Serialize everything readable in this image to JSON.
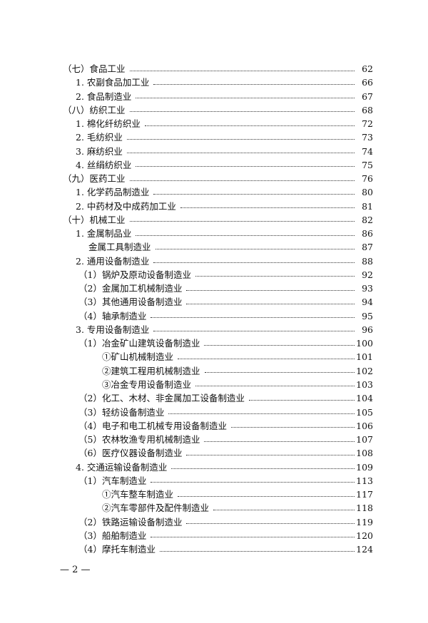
{
  "toc": [
    {
      "level": 0,
      "label": "（七）食品工业",
      "page": "62"
    },
    {
      "level": 1,
      "label": "1. 农副食品加工业",
      "page": "66"
    },
    {
      "level": 1,
      "label": "2. 食品制造业",
      "page": "67"
    },
    {
      "level": 0,
      "label": "（八）纺织工业",
      "page": "68"
    },
    {
      "level": 1,
      "label": "1. 棉化纤纺织业",
      "page": "72"
    },
    {
      "level": 1,
      "label": "2. 毛纺织业",
      "page": "73"
    },
    {
      "level": 1,
      "label": "3. 麻纺织业",
      "page": "74"
    },
    {
      "level": 1,
      "label": "4. 丝绢纺织业",
      "page": "75"
    },
    {
      "level": 0,
      "label": "（九）医药工业",
      "page": "76"
    },
    {
      "level": 1,
      "label": "1. 化学药品制造业",
      "page": "80"
    },
    {
      "level": 1,
      "label": "2. 中药材及中成药加工业",
      "page": "81"
    },
    {
      "level": 0,
      "label": "（十）机械工业",
      "page": "82"
    },
    {
      "level": 1,
      "label": "1. 金属制品业",
      "page": "86"
    },
    {
      "level": 4,
      "label": "金属工具制造业",
      "page": "87"
    },
    {
      "level": 1,
      "label": "2. 通用设备制造业",
      "page": "88"
    },
    {
      "level": 2,
      "label": "（1）锅炉及原动设备制造业",
      "page": "92"
    },
    {
      "level": 2,
      "label": "（2）金属加工机械制造业",
      "page": "93"
    },
    {
      "level": 2,
      "label": "（3）其他通用设备制造业",
      "page": "94"
    },
    {
      "level": 2,
      "label": "（4）轴承制造业",
      "page": "95"
    },
    {
      "level": 1,
      "label": "3. 专用设备制造业",
      "page": "96"
    },
    {
      "level": 2,
      "label": "（1）冶金矿山建筑设备制造业",
      "page": "100"
    },
    {
      "level": 3,
      "label": "①矿山机械制造业",
      "page": "101"
    },
    {
      "level": 3,
      "label": "②建筑工程用机械制造业",
      "page": "102"
    },
    {
      "level": 3,
      "label": "③冶金专用设备制造业",
      "page": "103"
    },
    {
      "level": 2,
      "label": "（2）化工、木材、非金属加工设备制造业",
      "page": "104"
    },
    {
      "level": 2,
      "label": "（3）轻纺设备制造业",
      "page": "105"
    },
    {
      "level": 2,
      "label": "（4）电子和电工机械专用设备制造业",
      "page": "106"
    },
    {
      "level": 2,
      "label": "（5）农林牧渔专用机械制造业",
      "page": "107"
    },
    {
      "level": 2,
      "label": "（6）医疗仪器设备制造业",
      "page": "108"
    },
    {
      "level": 1,
      "label": "4. 交通运输设备制造业",
      "page": "109"
    },
    {
      "level": 2,
      "label": "（1）汽车制造业",
      "page": "113"
    },
    {
      "level": 3,
      "label": "①汽车整车制造业",
      "page": "117"
    },
    {
      "level": 3,
      "label": "②汽车零部件及配件制造业",
      "page": "118"
    },
    {
      "level": 2,
      "label": "（2）铁路运输设备制造业",
      "page": "119"
    },
    {
      "level": 2,
      "label": "（3）船舶制造业",
      "page": "120"
    },
    {
      "level": 2,
      "label": "（4）摩托车制造业",
      "page": "124"
    }
  ],
  "footer": {
    "page_number": "— 2 —"
  }
}
